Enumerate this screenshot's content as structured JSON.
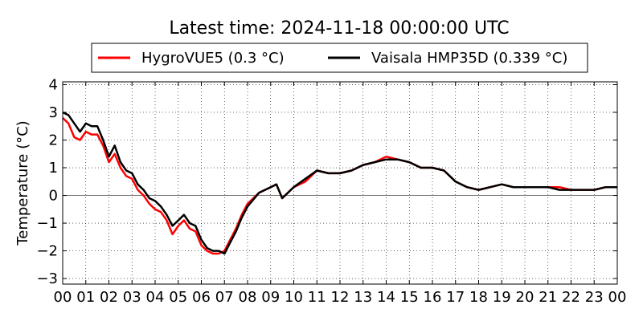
{
  "chart_data": {
    "type": "line",
    "title": "Latest time: 2024-11-18 00:00:00 UTC",
    "xlabel": "",
    "ylabel": "Temperature (°C)",
    "x_ticks": [
      "00",
      "01",
      "02",
      "03",
      "04",
      "05",
      "06",
      "07",
      "08",
      "09",
      "10",
      "11",
      "12",
      "13",
      "14",
      "15",
      "16",
      "17",
      "18",
      "19",
      "20",
      "21",
      "22",
      "23",
      "00"
    ],
    "y_ticks": [
      -3,
      -2,
      -1,
      0,
      1,
      2,
      3,
      4
    ],
    "xlim": [
      0,
      24
    ],
    "ylim": [
      -3.2,
      4.1
    ],
    "grid": true,
    "zero_line": true,
    "legend": "top-center",
    "x_unit": "hour",
    "series": [
      {
        "name": "HygroVUE5 (0.3 °C)",
        "color": "#ff0000",
        "x": [
          0,
          0.25,
          0.5,
          0.75,
          1,
          1.25,
          1.5,
          1.75,
          2,
          2.25,
          2.5,
          2.75,
          3,
          3.25,
          3.5,
          3.75,
          4,
          4.25,
          4.5,
          4.75,
          5,
          5.25,
          5.5,
          5.75,
          6,
          6.25,
          6.5,
          6.75,
          7,
          7.25,
          7.5,
          7.75,
          8,
          8.5,
          9,
          9.25,
          9.5,
          10,
          10.5,
          11,
          11.5,
          12,
          12.5,
          13,
          13.5,
          14,
          14.5,
          15,
          15.5,
          16,
          16.5,
          17,
          17.5,
          18,
          18.5,
          19,
          19.5,
          20,
          20.5,
          21,
          21.5,
          22,
          22.5,
          23,
          23.5,
          24
        ],
        "values": [
          2.8,
          2.6,
          2.1,
          2.0,
          2.3,
          2.2,
          2.2,
          1.8,
          1.2,
          1.5,
          1.0,
          0.7,
          0.6,
          0.2,
          0.0,
          -0.3,
          -0.5,
          -0.6,
          -0.9,
          -1.4,
          -1.1,
          -0.9,
          -1.2,
          -1.3,
          -1.8,
          -2.0,
          -2.1,
          -2.1,
          -2.0,
          -1.6,
          -1.2,
          -0.7,
          -0.3,
          0.1,
          0.3,
          0.4,
          -0.1,
          0.3,
          0.5,
          0.9,
          0.8,
          0.8,
          0.9,
          1.1,
          1.2,
          1.4,
          1.3,
          1.2,
          1.0,
          1.0,
          0.9,
          0.5,
          0.3,
          0.2,
          0.3,
          0.4,
          0.3,
          0.3,
          0.3,
          0.3,
          0.3,
          0.2,
          0.2,
          0.2,
          0.3,
          0.3
        ]
      },
      {
        "name": "Vaisala HMP35D (0.339 °C)",
        "color": "#000000",
        "x": [
          0,
          0.25,
          0.5,
          0.75,
          1,
          1.25,
          1.5,
          1.75,
          2,
          2.25,
          2.5,
          2.75,
          3,
          3.25,
          3.5,
          3.75,
          4,
          4.25,
          4.5,
          4.75,
          5,
          5.25,
          5.5,
          5.75,
          6,
          6.25,
          6.5,
          6.75,
          7,
          7.25,
          7.5,
          7.75,
          8,
          8.5,
          9,
          9.25,
          9.5,
          10,
          10.5,
          11,
          11.5,
          12,
          12.5,
          13,
          13.5,
          14,
          14.5,
          15,
          15.5,
          16,
          16.5,
          17,
          17.5,
          18,
          18.5,
          19,
          19.5,
          20,
          20.5,
          21,
          21.5,
          22,
          22.5,
          23,
          23.5,
          24
        ],
        "values": [
          3.0,
          2.9,
          2.6,
          2.3,
          2.6,
          2.5,
          2.5,
          2.0,
          1.4,
          1.8,
          1.2,
          0.9,
          0.8,
          0.4,
          0.2,
          -0.1,
          -0.2,
          -0.4,
          -0.7,
          -1.1,
          -0.9,
          -0.7,
          -1.0,
          -1.1,
          -1.6,
          -1.9,
          -2.0,
          -2.0,
          -2.1,
          -1.7,
          -1.3,
          -0.8,
          -0.4,
          0.1,
          0.3,
          0.4,
          -0.1,
          0.3,
          0.6,
          0.9,
          0.8,
          0.8,
          0.9,
          1.1,
          1.2,
          1.3,
          1.3,
          1.2,
          1.0,
          1.0,
          0.9,
          0.5,
          0.3,
          0.2,
          0.3,
          0.4,
          0.3,
          0.3,
          0.3,
          0.3,
          0.2,
          0.2,
          0.2,
          0.2,
          0.3,
          0.3
        ]
      }
    ]
  }
}
